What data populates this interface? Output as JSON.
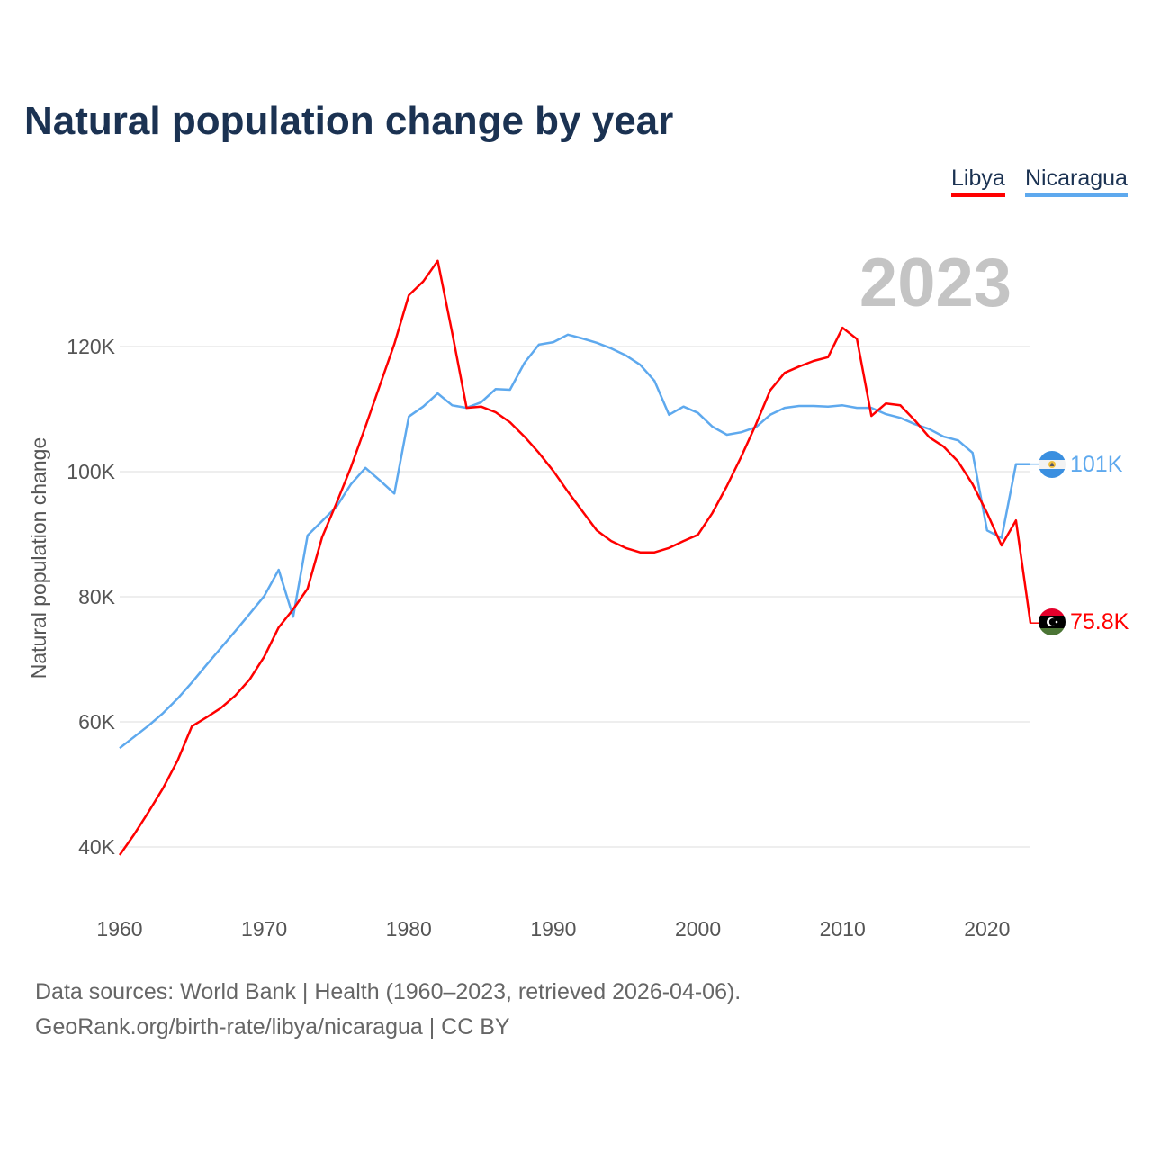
{
  "chart_data": {
    "type": "line",
    "title": "Natural population change by year",
    "xlabel": "",
    "ylabel": "Natural population change",
    "xlim": [
      1960,
      2023
    ],
    "ylim": [
      30000,
      140000
    ],
    "x_ticks": [
      1960,
      1970,
      1980,
      1990,
      2000,
      2010,
      2020
    ],
    "y_ticks": [
      40000,
      60000,
      80000,
      100000,
      120000
    ],
    "y_tick_labels": [
      "40K",
      "60K",
      "80K",
      "100K",
      "120K"
    ],
    "x_tick_labels": [
      "1960",
      "1970",
      "1980",
      "1990",
      "2000",
      "2010",
      "2020"
    ],
    "grid": true,
    "legend_position": "top-right",
    "year_watermark": "2023",
    "x": [
      1960,
      1961,
      1962,
      1963,
      1964,
      1965,
      1966,
      1967,
      1968,
      1969,
      1970,
      1971,
      1972,
      1973,
      1974,
      1975,
      1976,
      1977,
      1978,
      1979,
      1980,
      1981,
      1982,
      1983,
      1984,
      1985,
      1986,
      1987,
      1988,
      1989,
      1990,
      1991,
      1992,
      1993,
      1994,
      1995,
      1996,
      1997,
      1998,
      1999,
      2000,
      2001,
      2002,
      2003,
      2004,
      2005,
      2006,
      2007,
      2008,
      2009,
      2010,
      2011,
      2012,
      2013,
      2014,
      2015,
      2016,
      2017,
      2018,
      2019,
      2020,
      2021,
      2022,
      2023
    ],
    "series": [
      {
        "name": "Libya",
        "color": "#ff0000",
        "end_label": "75.8K",
        "flag": "libya-flag",
        "values": [
          38700,
          42000,
          45600,
          49400,
          53800,
          59300,
          60700,
          62200,
          64200,
          66800,
          70400,
          75100,
          78000,
          81300,
          89500,
          95000,
          100700,
          107200,
          113800,
          120400,
          128200,
          130400,
          133700,
          122200,
          110200,
          110400,
          109500,
          107900,
          105600,
          103000,
          100100,
          96800,
          93700,
          90600,
          88900,
          87800,
          87100,
          87100,
          87800,
          88900,
          89900,
          93400,
          97700,
          102400,
          107500,
          113000,
          115800,
          116800,
          117700,
          118300,
          123000,
          121200,
          108900,
          110900,
          110600,
          108200,
          105500,
          104000,
          101600,
          98000,
          93400,
          88200,
          92200,
          75800
        ]
      },
      {
        "name": "Nicaragua",
        "color": "#5ea9ee",
        "end_label": "101K",
        "flag": "nicaragua-flag",
        "values": [
          55800,
          57600,
          59400,
          61400,
          63700,
          66300,
          69100,
          71800,
          74500,
          77300,
          80100,
          84300,
          76800,
          89800,
          92100,
          94400,
          98000,
          100600,
          98600,
          96500,
          108800,
          110400,
          112500,
          110600,
          110200,
          111100,
          113200,
          113100,
          117400,
          120300,
          120700,
          121900,
          121300,
          120600,
          119700,
          118600,
          117100,
          114500,
          109100,
          110400,
          109400,
          107200,
          105900,
          106300,
          107100,
          109100,
          110200,
          110500,
          110500,
          110400,
          110600,
          110200,
          110200,
          109200,
          108600,
          107600,
          106800,
          105600,
          105000,
          103000,
          90600,
          89400,
          101200,
          101200
        ]
      }
    ]
  },
  "footer": {
    "source_line": "Data sources: World Bank | Health (1960–2023, retrieved 2026-04-06).",
    "url_line": "GeoRank.org/birth-rate/libya/nicaragua | CC BY"
  }
}
